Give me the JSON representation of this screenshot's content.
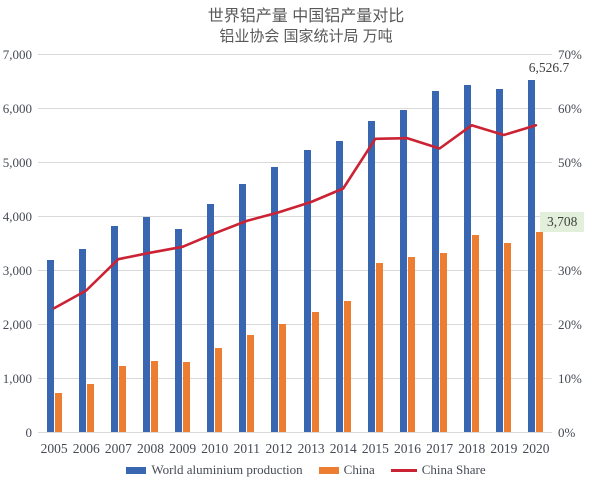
{
  "title": "世界铝产量 中国铝产量对比",
  "subtitle": "铝业协会 国家统计局 万吨",
  "colors": {
    "world_bar": "#3866b0",
    "china_bar": "#ed7d31",
    "share_line": "#cb2334",
    "gridline": "#d9d9d9",
    "tick_text": "#454a54",
    "title_text": "#595959",
    "annotation_text": "#404040",
    "annotation_highlight_bg": "#e2efda"
  },
  "chart_data": {
    "type": "bar",
    "subtype": "bar+line combo, dual axis",
    "categories": [
      "2005",
      "2006",
      "2007",
      "2008",
      "2009",
      "2010",
      "2011",
      "2012",
      "2013",
      "2014",
      "2015",
      "2016",
      "2017",
      "2018",
      "2019",
      "2020"
    ],
    "series": [
      {
        "name": "World aluminium production",
        "type": "bar",
        "axis": "left",
        "color_key": "world_bar",
        "values": [
          3190,
          3390,
          3810,
          3975,
          3760,
          4230,
          4600,
          4910,
          5230,
          5380,
          5760,
          5970,
          6320,
          6420,
          6360,
          6526.7
        ]
      },
      {
        "name": "China",
        "type": "bar",
        "axis": "left",
        "color_key": "china_bar",
        "values": [
          730,
          890,
          1220,
          1320,
          1290,
          1560,
          1800,
          2000,
          2230,
          2430,
          3130,
          3250,
          3320,
          3650,
          3500,
          3708
        ]
      },
      {
        "name": "China Share",
        "type": "line",
        "axis": "right",
        "color_key": "share_line",
        "values_percent": [
          22.9,
          26.2,
          32.0,
          33.2,
          34.3,
          36.8,
          39.1,
          40.7,
          42.6,
          45.1,
          54.3,
          54.4,
          52.5,
          56.8,
          55.0,
          56.8
        ]
      }
    ],
    "left_axis": {
      "min": 0,
      "max": 7000,
      "ticks_top_down": [
        "7,000",
        "6,000",
        "5,000",
        "4,000",
        "3,000",
        "2,000",
        "1,000",
        "0"
      ]
    },
    "right_axis": {
      "min": 0,
      "max": 70,
      "ticks_top_down": [
        "70%",
        "60%",
        "50%",
        "40%",
        "30%",
        "20%",
        "10%",
        "0%"
      ]
    },
    "grid": "horizontal only",
    "legend_position": "bottom",
    "annotations": [
      {
        "series": "World aluminium production",
        "category": "2020",
        "text": "6,526.7",
        "highlighted": false
      },
      {
        "series": "China",
        "category": "2020",
        "text": "3,708",
        "highlighted": true
      }
    ]
  },
  "legend": {
    "items": [
      {
        "label": "World aluminium production",
        "swatch": "rect",
        "color_key": "world_bar"
      },
      {
        "label": "China",
        "swatch": "rect",
        "color_key": "china_bar"
      },
      {
        "label": "China Share",
        "swatch": "line",
        "color_key": "share_line"
      }
    ]
  }
}
